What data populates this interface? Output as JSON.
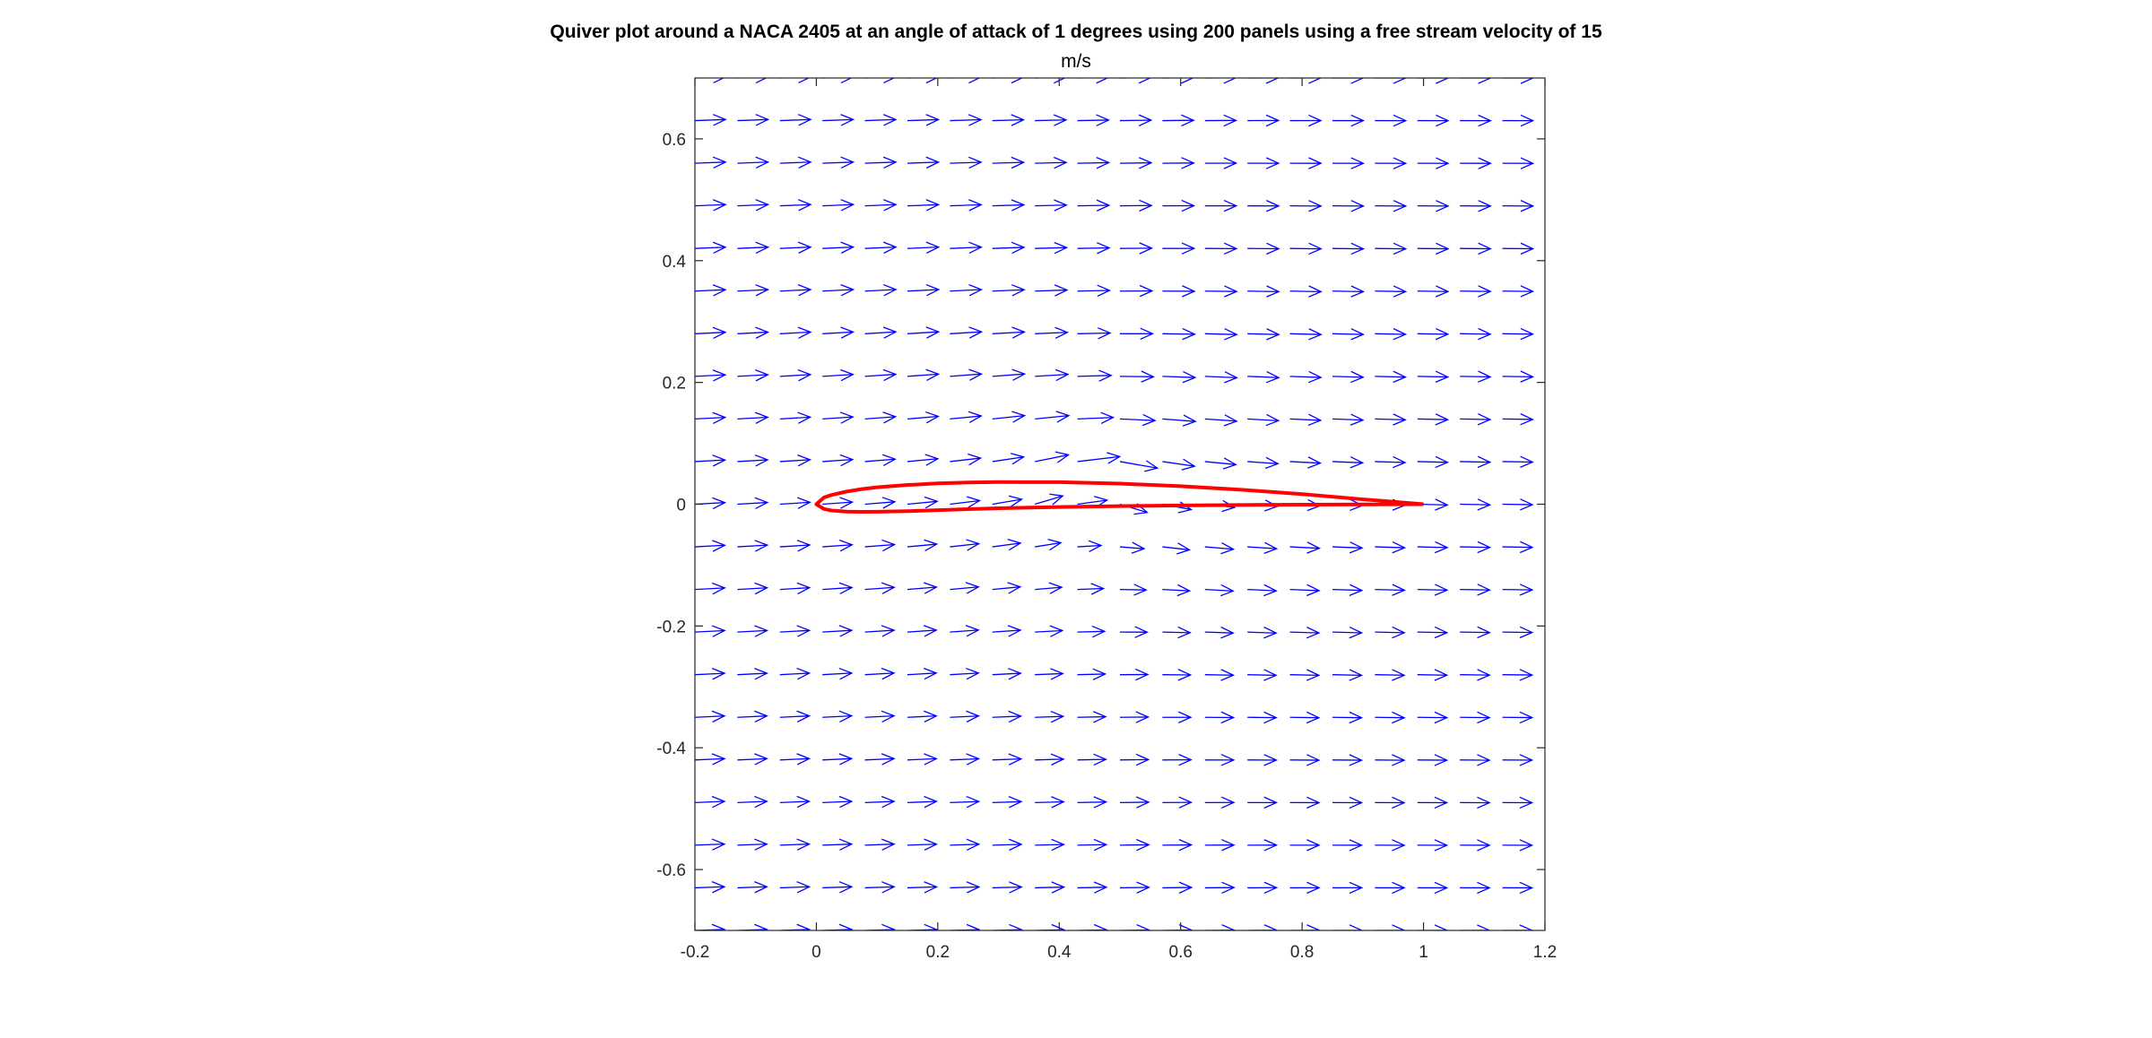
{
  "chart_data": {
    "type": "quiver",
    "title_lines": [
      "Quiver plot around a NACA 2405 at an angle of attack of 1 degrees using 200 panels using a free stream velocity of 15",
      "m/s"
    ],
    "xlabel": "",
    "ylabel": "",
    "xlim": [
      -0.2,
      1.2
    ],
    "ylim": [
      -0.7,
      0.7
    ],
    "x_ticks": [
      -0.2,
      0,
      0.2,
      0.4,
      0.6,
      0.8,
      1,
      1.2
    ],
    "x_tick_labels": [
      "-0.2",
      "0",
      "0.2",
      "0.4",
      "0.6",
      "0.8",
      "1",
      "1.2"
    ],
    "y_ticks": [
      -0.6,
      -0.4,
      -0.2,
      0,
      0.2,
      0.4,
      0.6
    ],
    "y_tick_labels": [
      "-0.6",
      "-0.4",
      "-0.2",
      "0",
      "0.2",
      "0.4",
      "0.6"
    ],
    "grid": false,
    "free_stream_velocity_mps": 15,
    "angle_of_attack_deg": 1,
    "quiver_grid": {
      "x": [
        -0.2,
        -0.13,
        -0.06,
        0.01,
        0.08,
        0.15,
        0.22,
        0.29,
        0.36,
        0.43,
        0.5,
        0.57,
        0.64,
        0.71,
        0.78,
        0.85,
        0.92,
        0.99,
        1.06,
        1.13,
        1.2
      ],
      "y": [
        -0.7,
        -0.63,
        -0.56,
        -0.49,
        -0.42,
        -0.35,
        -0.28,
        -0.21,
        -0.14,
        -0.07,
        0.0,
        0.07,
        0.14,
        0.21,
        0.28,
        0.35,
        0.42,
        0.49,
        0.56,
        0.63,
        0.7
      ]
    },
    "series": [
      {
        "name": "",
        "kind": "vector-field",
        "color": "#0000ff"
      },
      {
        "name": "",
        "kind": "airfoil",
        "color": "#ff0000",
        "x": [
          1.0,
          0.95,
          0.9,
          0.8,
          0.7,
          0.6,
          0.5,
          0.4,
          0.3,
          0.25,
          0.2,
          0.15,
          0.1,
          0.075,
          0.05,
          0.025,
          0.0125,
          0.0,
          0.0125,
          0.025,
          0.05,
          0.075,
          0.1,
          0.15,
          0.2,
          0.25,
          0.3,
          0.4,
          0.5,
          0.6,
          0.7,
          0.8,
          0.9,
          0.95,
          1.0
        ],
        "y": [
          0.0,
          0.004,
          0.008,
          0.0165,
          0.0238,
          0.0296,
          0.0338,
          0.0362,
          0.0364,
          0.0357,
          0.0342,
          0.0316,
          0.0278,
          0.0248,
          0.0208,
          0.0152,
          0.011,
          0.0,
          -0.0078,
          -0.0103,
          -0.0122,
          -0.0126,
          -0.0124,
          -0.0114,
          -0.0098,
          -0.0081,
          -0.0066,
          -0.0046,
          -0.0031,
          -0.002,
          -0.0012,
          -0.0007,
          -0.0003,
          -0.0002,
          0.0
        ]
      }
    ]
  }
}
